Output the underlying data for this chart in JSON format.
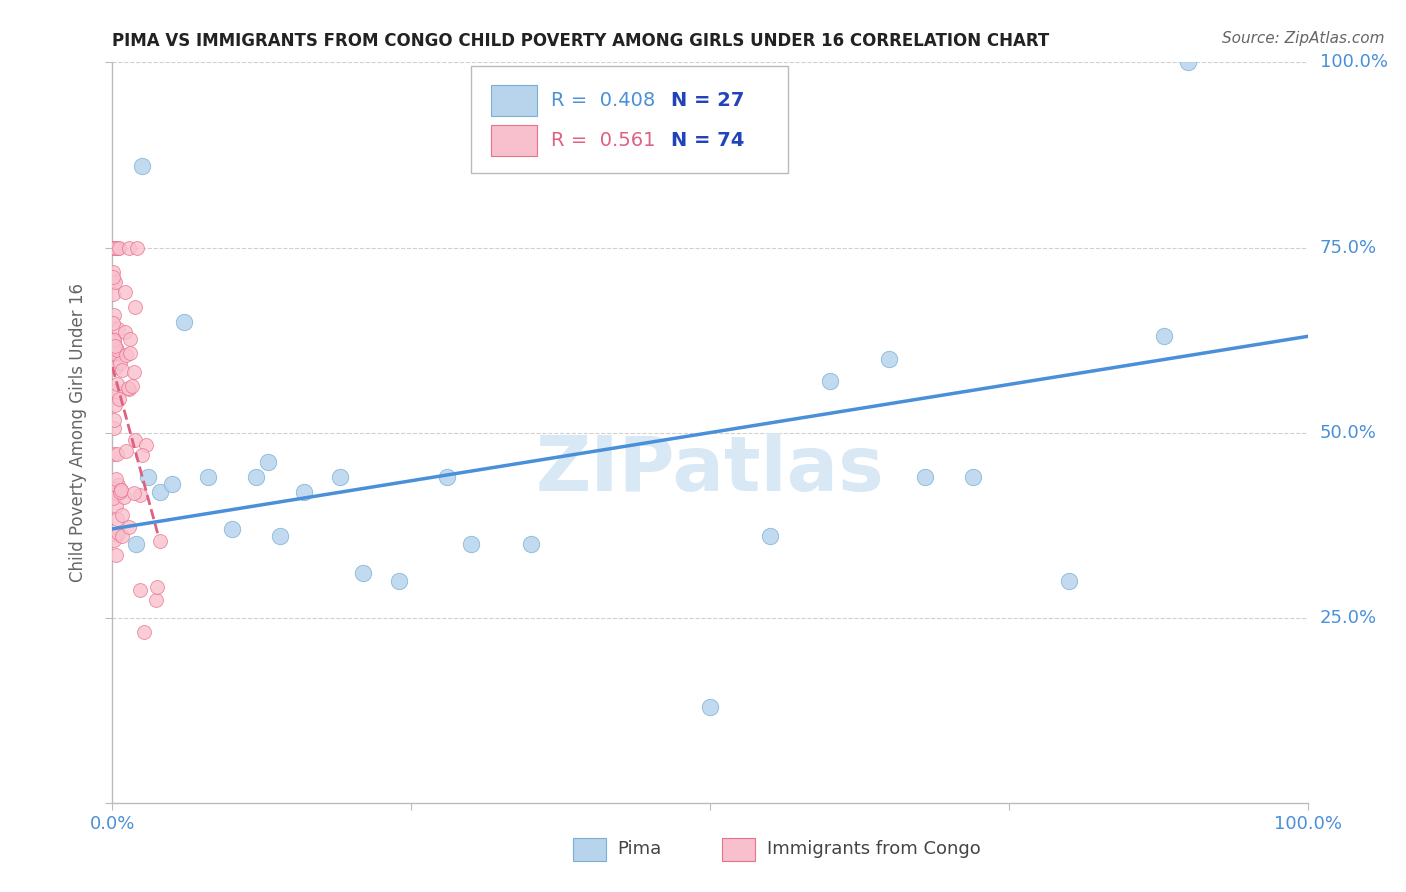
{
  "title": "PIMA VS IMMIGRANTS FROM CONGO CHILD POVERTY AMONG GIRLS UNDER 16 CORRELATION CHART",
  "source": "Source: ZipAtlas.com",
  "ylabel": "Child Poverty Among Girls Under 16",
  "watermark": "ZIPatlas",
  "pima_R": 0.408,
  "pima_N": 27,
  "congo_R": 0.561,
  "congo_N": 74,
  "pima_color": "#b8d4ed",
  "pima_edge_color": "#7aafd4",
  "pima_line_color": "#4a90d9",
  "congo_color": "#f8c0cc",
  "congo_edge_color": "#e87090",
  "congo_line_color": "#e06080",
  "background_color": "#ffffff",
  "grid_color": "#d0d0d0",
  "title_color": "#222222",
  "axis_tick_color": "#4a90d9",
  "ylabel_color": "#666666",
  "R_label_color_pima": "#4a90d9",
  "R_label_color_congo": "#e06080",
  "N_label_color": "#2244bb",
  "source_color": "#666666",
  "watermark_color": "#d8e8f4",
  "xlim": [
    0.0,
    1.0
  ],
  "ylim": [
    0.0,
    1.0
  ],
  "pima_x": [
    0.02,
    0.025,
    0.03,
    0.04,
    0.05,
    0.06,
    0.08,
    0.1,
    0.12,
    0.13,
    0.14,
    0.16,
    0.19,
    0.21,
    0.24,
    0.28,
    0.3,
    0.35,
    0.5,
    0.55,
    0.6,
    0.65,
    0.68,
    0.72,
    0.8,
    0.88,
    0.9
  ],
  "pima_y": [
    0.35,
    0.86,
    0.44,
    0.42,
    0.43,
    0.65,
    0.44,
    0.37,
    0.44,
    0.46,
    0.36,
    0.42,
    0.44,
    0.31,
    0.3,
    0.44,
    0.35,
    0.35,
    0.13,
    0.36,
    0.57,
    0.6,
    0.44,
    0.44,
    0.3,
    0.63,
    1.0
  ],
  "congo_x_tight": true,
  "congo_line_x_start": 0.0,
  "congo_line_x_end": 0.035,
  "blue_line_y_at_0": 0.37,
  "blue_line_y_at_1": 0.63
}
